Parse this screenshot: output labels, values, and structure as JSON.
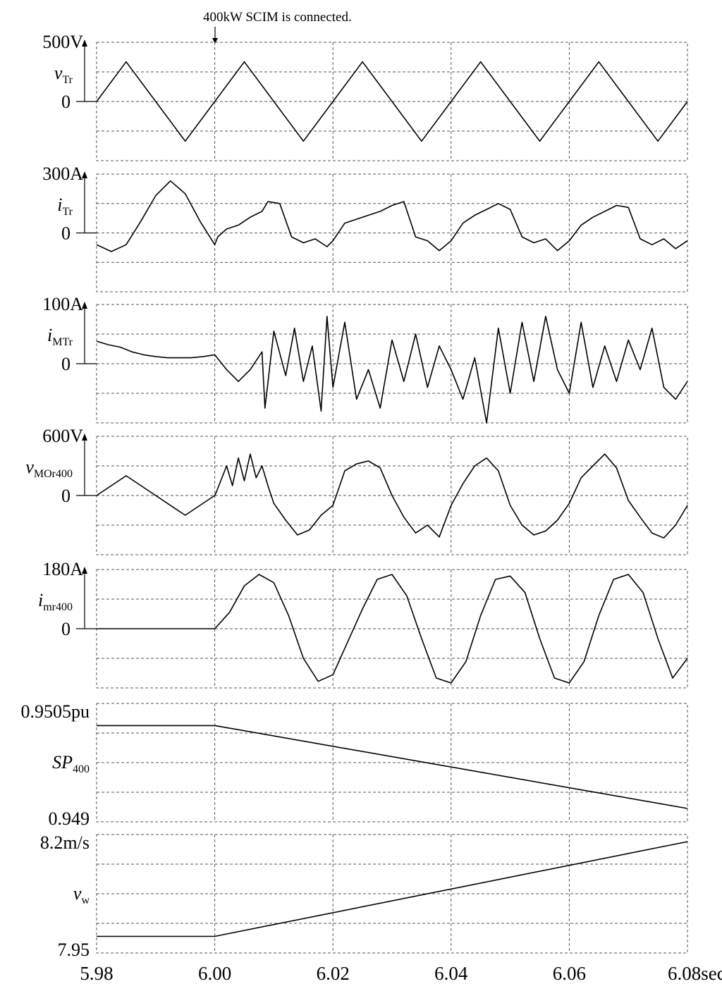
{
  "chart_data": {
    "type": "line",
    "annotation": "400kW SCIM is connected.",
    "x_unit": "sec",
    "x_ticks": [
      "5.98",
      "6.00",
      "6.02",
      "6.04",
      "6.06",
      "6.08sec"
    ],
    "x_values": [
      5.98,
      6.0,
      6.02,
      6.04,
      6.06,
      6.08
    ],
    "grid": true,
    "panels": [
      {
        "id": "vTr",
        "label_main": "v",
        "label_sub": "Tr",
        "italic_main": true,
        "top_label": "500V",
        "zero_label": "0",
        "ylim": [
          -500,
          500
        ],
        "series": [
          {
            "x": [
              5.98,
              5.985,
              5.99,
              5.995,
              6.0,
              6.005,
              6.01,
              6.015,
              6.02,
              6.025,
              6.03,
              6.035,
              6.04,
              6.045,
              6.05,
              6.055,
              6.06,
              6.065,
              6.07,
              6.075,
              6.08
            ],
            "y": [
              0,
              335,
              0,
              -335,
              0,
              335,
              0,
              -335,
              0,
              335,
              0,
              -335,
              0,
              335,
              0,
              -335,
              0,
              335,
              0,
              -335,
              0
            ]
          }
        ]
      },
      {
        "id": "iTr",
        "label_main": "i",
        "label_sub": "Tr",
        "italic_main": true,
        "top_label": "300A",
        "zero_label": "0",
        "ylim": [
          -300,
          300
        ],
        "series": [
          {
            "x": [
              5.98,
              5.9825,
              5.985,
              5.9875,
              5.99,
              5.9925,
              5.995,
              5.9975,
              6.0,
              6.0005,
              6.002,
              6.004,
              6.006,
              6.008,
              6.009,
              6.011,
              6.013,
              6.015,
              6.017,
              6.019,
              6.02,
              6.022,
              6.024,
              6.026,
              6.028,
              6.03,
              6.032,
              6.034,
              6.036,
              6.038,
              6.04,
              6.042,
              6.044,
              6.046,
              6.048,
              6.05,
              6.052,
              6.054,
              6.056,
              6.058,
              6.06,
              6.062,
              6.064,
              6.066,
              6.068,
              6.07,
              6.072,
              6.074,
              6.076,
              6.078,
              6.08
            ],
            "y": [
              -60,
              -95,
              -60,
              60,
              190,
              265,
              200,
              60,
              -60,
              -20,
              20,
              40,
              80,
              110,
              160,
              150,
              -20,
              -50,
              -30,
              -70,
              -40,
              50,
              70,
              90,
              110,
              140,
              160,
              -20,
              -40,
              -90,
              -40,
              50,
              90,
              120,
              150,
              120,
              -20,
              -50,
              -30,
              -90,
              -40,
              40,
              80,
              110,
              140,
              130,
              -30,
              -60,
              -30,
              -80,
              -40
            ]
          }
        ]
      },
      {
        "id": "iMTr",
        "label_main": "i",
        "label_sub": "MTr",
        "italic_main": true,
        "top_label": "100A",
        "zero_label": "0",
        "ylim": [
          -100,
          100
        ],
        "series": [
          {
            "x": [
              5.98,
              5.982,
              5.984,
              5.986,
              5.988,
              5.99,
              5.992,
              5.994,
              5.996,
              5.998,
              6.0,
              6.002,
              6.004,
              6.006,
              6.008,
              6.0085,
              6.01,
              6.012,
              6.0135,
              6.015,
              6.0165,
              6.018,
              6.019,
              6.02,
              6.022,
              6.024,
              6.026,
              6.028,
              6.03,
              6.032,
              6.034,
              6.036,
              6.038,
              6.04,
              6.042,
              6.044,
              6.046,
              6.048,
              6.05,
              6.052,
              6.054,
              6.056,
              6.058,
              6.06,
              6.062,
              6.064,
              6.066,
              6.068,
              6.07,
              6.072,
              6.074,
              6.076,
              6.078,
              6.08
            ],
            "y": [
              38,
              32,
              28,
              20,
              15,
              12,
              10,
              10,
              10,
              12,
              15,
              -10,
              -30,
              -10,
              20,
              -75,
              55,
              -20,
              60,
              -30,
              30,
              -80,
              80,
              -40,
              70,
              -60,
              -10,
              -75,
              40,
              -30,
              50,
              -40,
              30,
              -10,
              -60,
              10,
              -100,
              60,
              -50,
              70,
              -30,
              80,
              -10,
              -50,
              70,
              -40,
              30,
              -30,
              40,
              -10,
              60,
              -40,
              -60,
              -30
            ]
          }
        ]
      },
      {
        "id": "vMOr400",
        "label_main": "v",
        "label_sub": "MOr400",
        "italic_main": true,
        "top_label": "600V",
        "zero_label": "0",
        "ylim": [
          -600,
          600
        ],
        "series": [
          {
            "x": [
              5.98,
              5.985,
              5.99,
              5.995,
              6.0,
              6.0003,
              6.002,
              6.003,
              6.004,
              6.005,
              6.006,
              6.007,
              6.008,
              6.009,
              6.01,
              6.012,
              6.014,
              6.016,
              6.018,
              6.02,
              6.022,
              6.024,
              6.026,
              6.028,
              6.03,
              6.032,
              6.034,
              6.036,
              6.038,
              6.04,
              6.042,
              6.044,
              6.046,
              6.048,
              6.05,
              6.052,
              6.054,
              6.056,
              6.058,
              6.06,
              6.062,
              6.064,
              6.066,
              6.068,
              6.07,
              6.072,
              6.074,
              6.076,
              6.078,
              6.08
            ],
            "y": [
              0,
              200,
              0,
              -200,
              0,
              40,
              300,
              100,
              380,
              150,
              420,
              180,
              300,
              100,
              -80,
              -250,
              -400,
              -350,
              -200,
              -100,
              250,
              320,
              350,
              280,
              0,
              -220,
              -380,
              -300,
              -420,
              -100,
              120,
              300,
              380,
              250,
              -100,
              -300,
              -400,
              -360,
              -250,
              -80,
              180,
              300,
              420,
              280,
              -50,
              -220,
              -380,
              -430,
              -300,
              -100
            ]
          }
        ]
      },
      {
        "id": "imr400",
        "label_main": "i",
        "label_sub": "mr400",
        "italic_main": true,
        "top_label": "180A",
        "zero_label": "0",
        "ylim": [
          -180,
          180
        ],
        "series": [
          {
            "x": [
              5.98,
              5.99,
              6.0,
              6.0025,
              6.005,
              6.0075,
              6.01,
              6.0125,
              6.015,
              6.0175,
              6.02,
              6.0225,
              6.025,
              6.0275,
              6.03,
              6.0325,
              6.035,
              6.0375,
              6.04,
              6.0425,
              6.045,
              6.0475,
              6.05,
              6.0525,
              6.055,
              6.0575,
              6.06,
              6.0625,
              6.065,
              6.0675,
              6.07,
              6.0725,
              6.075,
              6.0775,
              6.08
            ],
            "y": [
              0,
              0,
              0,
              50,
              130,
              165,
              140,
              40,
              -90,
              -160,
              -140,
              -40,
              60,
              150,
              165,
              100,
              -30,
              -150,
              -165,
              -100,
              40,
              150,
              160,
              110,
              -30,
              -150,
              -165,
              -100,
              40,
              150,
              165,
              110,
              -30,
              -150,
              -90
            ]
          }
        ]
      },
      {
        "id": "SP400",
        "label_main": "SP",
        "label_sub": "400",
        "italic_main": true,
        "top_label": "0.9505pu",
        "bottom_label": "0.949",
        "ylim": [
          0.949,
          0.9505
        ],
        "series": [
          {
            "x": [
              5.98,
              6.0,
              6.08
            ],
            "y": [
              0.95022,
              0.95022,
              0.94917
            ]
          }
        ]
      },
      {
        "id": "vw",
        "label_main": "v",
        "label_sub": "w",
        "italic_main": true,
        "top_label": "8.2m/s",
        "bottom_label": "7.95",
        "ylim": [
          7.95,
          8.2
        ],
        "series": [
          {
            "x": [
              5.98,
              6.0,
              6.08
            ],
            "y": [
              7.985,
              7.985,
              8.185
            ]
          }
        ]
      }
    ]
  }
}
